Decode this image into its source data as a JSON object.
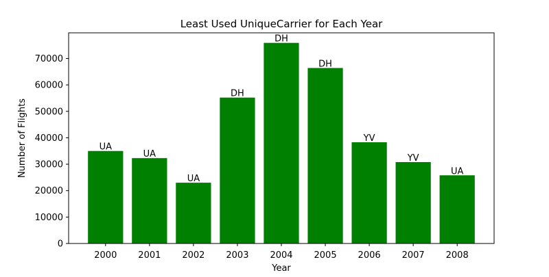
{
  "chart_data": {
    "type": "bar",
    "title": "Least Used UniqueCarrier for Each Year",
    "xlabel": "Year",
    "ylabel": "Number of Flights",
    "categories": [
      "2000",
      "2001",
      "2002",
      "2003",
      "2004",
      "2005",
      "2006",
      "2007",
      "2008"
    ],
    "values": [
      35000,
      32300,
      23000,
      55200,
      75900,
      66400,
      38300,
      30800,
      25800
    ],
    "bar_labels": [
      "UA",
      "UA",
      "UA",
      "DH",
      "DH",
      "DH",
      "YV",
      "YV",
      "UA"
    ],
    "yticks": [
      0,
      10000,
      20000,
      30000,
      40000,
      50000,
      60000,
      70000
    ],
    "ylim": [
      0,
      79700
    ],
    "grid": false,
    "bar_color": "#008000"
  }
}
